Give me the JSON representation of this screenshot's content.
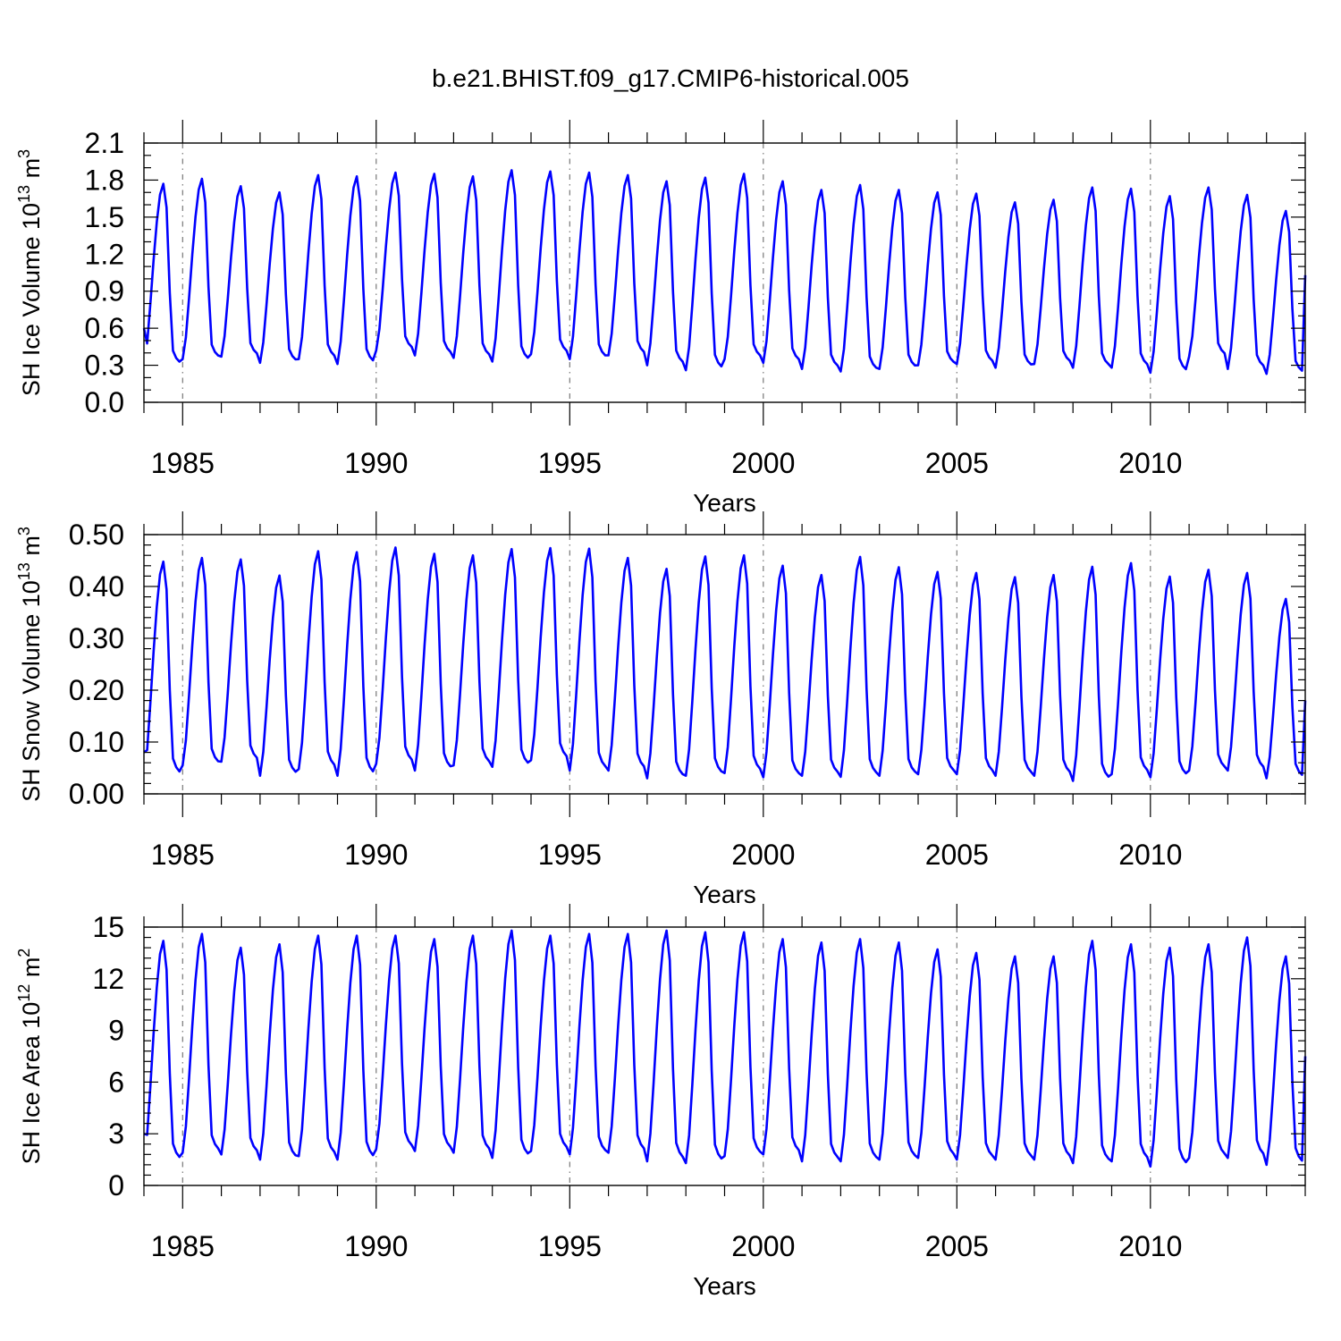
{
  "figure": {
    "title": "b.e21.BHIST.f09_g17.CMIP6-historical.005",
    "colors": {
      "series": "#0000ff",
      "axes": "#000000",
      "reference_lines": "#777777"
    }
  },
  "chart_data": [
    {
      "type": "line",
      "title": "",
      "xlabel": "Years",
      "ylabel": "SH Ice Volume 10^13 m^3",
      "ylabel_parts": {
        "base": "SH Ice Volume 10",
        "exp1": "13",
        "mid": " m",
        "exp2": "3"
      },
      "xlim": [
        1984.0,
        2014.0
      ],
      "ylim": [
        0.0,
        2.1
      ],
      "x_ticks": [
        1985,
        1990,
        1995,
        2000,
        2005,
        2010
      ],
      "x_tick_labels": [
        "1985",
        "1990",
        "1995",
        "2000",
        "2005",
        "2010"
      ],
      "y_ticks": [
        0.0,
        0.3,
        0.6,
        0.9,
        1.2,
        1.5,
        1.8,
        2.1
      ],
      "y_tick_labels": [
        "0.0",
        "0.3",
        "0.6",
        "0.9",
        "1.2",
        "1.5",
        "1.8",
        "2.1"
      ],
      "y_minor_step": 0.1,
      "x_minor_step": 1,
      "reference_lines_x": [
        1985,
        1990,
        1995,
        2000,
        2005,
        2010
      ],
      "series": [
        {
          "x_start": 1984.0,
          "x_step_months": 1,
          "annual_min": [
            0.3,
            0.35,
            0.37,
            0.32,
            0.35,
            0.31,
            0.42,
            0.38,
            0.36,
            0.33,
            0.39,
            0.35,
            0.38,
            0.3,
            0.26,
            0.35,
            0.32,
            0.27,
            0.25,
            0.27,
            0.3,
            0.31,
            0.28,
            0.31,
            0.28,
            0.28,
            0.24,
            0.37,
            0.27,
            0.23
          ],
          "annual_max": [
            1.77,
            1.81,
            1.75,
            1.7,
            1.84,
            1.83,
            1.86,
            1.85,
            1.83,
            1.88,
            1.87,
            1.86,
            1.84,
            1.79,
            1.82,
            1.85,
            1.79,
            1.72,
            1.76,
            1.72,
            1.7,
            1.69,
            1.62,
            1.64,
            1.74,
            1.73,
            1.67,
            1.74,
            1.68,
            1.55
          ],
          "annual_shape": [
            0.0,
            0.12,
            0.34,
            0.58,
            0.79,
            0.94,
            1.0,
            0.87,
            0.4,
            0.08,
            0.04,
            0.02
          ],
          "first_month_value": 0.6,
          "final_value": 1.03
        }
      ]
    },
    {
      "type": "line",
      "title": "",
      "xlabel": "Years",
      "ylabel": "SH Snow Volume 10^13 m^3",
      "ylabel_parts": {
        "base": "SH Snow Volume 10",
        "exp1": "13",
        "mid": " m",
        "exp2": "3"
      },
      "xlim": [
        1984.0,
        2014.0
      ],
      "ylim": [
        0.0,
        0.5
      ],
      "x_ticks": [
        1985,
        1990,
        1995,
        2000,
        2005,
        2010
      ],
      "x_tick_labels": [
        "1985",
        "1990",
        "1995",
        "2000",
        "2005",
        "2010"
      ],
      "y_ticks": [
        0.0,
        0.1,
        0.2,
        0.3,
        0.4,
        0.5
      ],
      "y_tick_labels": [
        "0.00",
        "0.10",
        "0.20",
        "0.30",
        "0.40",
        "0.50"
      ],
      "y_minor_step": 0.02,
      "x_minor_step": 1,
      "reference_lines_x": [
        1985,
        1990,
        1995,
        2000,
        2005,
        2010
      ],
      "series": [
        {
          "x_start": 1984.0,
          "x_step_months": 1,
          "annual_min": [
            0.035,
            0.055,
            0.062,
            0.035,
            0.048,
            0.035,
            0.058,
            0.045,
            0.055,
            0.052,
            0.065,
            0.045,
            0.045,
            0.03,
            0.035,
            0.04,
            0.032,
            0.035,
            0.033,
            0.035,
            0.038,
            0.038,
            0.035,
            0.035,
            0.025,
            0.038,
            0.032,
            0.045,
            0.045,
            0.03
          ],
          "annual_max": [
            0.448,
            0.455,
            0.452,
            0.421,
            0.468,
            0.466,
            0.475,
            0.463,
            0.46,
            0.472,
            0.474,
            0.473,
            0.455,
            0.434,
            0.458,
            0.46,
            0.44,
            0.422,
            0.457,
            0.437,
            0.428,
            0.426,
            0.418,
            0.422,
            0.438,
            0.445,
            0.419,
            0.432,
            0.426,
            0.376
          ],
          "annual_shape": [
            0.0,
            0.12,
            0.34,
            0.58,
            0.79,
            0.94,
            1.0,
            0.87,
            0.4,
            0.08,
            0.04,
            0.02
          ],
          "first_month_value": 0.08,
          "final_value": 0.18
        }
      ]
    },
    {
      "type": "line",
      "title": "",
      "xlabel": "Years",
      "ylabel": "SH Ice Area 10^12 m^2",
      "ylabel_parts": {
        "base": "SH Ice Area 10",
        "exp1": "12",
        "mid": " m",
        "exp2": "2"
      },
      "xlim": [
        1984.0,
        2014.0
      ],
      "ylim": [
        0,
        15
      ],
      "x_ticks": [
        1985,
        1990,
        1995,
        2000,
        2005,
        2010
      ],
      "x_tick_labels": [
        "1985",
        "1990",
        "1995",
        "2000",
        "2005",
        "2010"
      ],
      "y_ticks": [
        0,
        3,
        6,
        9,
        12,
        15
      ],
      "y_tick_labels": [
        "0",
        "3",
        "6",
        "9",
        "12",
        "15"
      ],
      "y_minor_step": 0.6,
      "x_minor_step": 1,
      "reference_lines_x": [
        1985,
        1990,
        1995,
        2000,
        2005,
        2010
      ],
      "series": [
        {
          "x_start": 1984.0,
          "x_step_months": 1,
          "annual_min": [
            1.4,
            1.9,
            1.8,
            1.5,
            1.7,
            1.5,
            2.1,
            2.0,
            1.9,
            1.6,
            2.0,
            1.8,
            1.9,
            1.4,
            1.3,
            1.7,
            1.8,
            1.4,
            1.4,
            1.5,
            1.6,
            1.5,
            1.5,
            1.5,
            1.3,
            1.4,
            1.1,
            1.6,
            1.6,
            1.2
          ],
          "annual_max": [
            14.2,
            14.6,
            13.8,
            14.0,
            14.5,
            14.5,
            14.5,
            14.3,
            14.5,
            14.8,
            14.5,
            14.6,
            14.6,
            14.8,
            14.7,
            14.7,
            14.3,
            14.1,
            14.3,
            14.1,
            13.7,
            13.5,
            13.3,
            13.3,
            14.2,
            14.0,
            13.8,
            14.0,
            14.4,
            13.3
          ],
          "annual_shape": [
            0.0,
            0.12,
            0.34,
            0.58,
            0.79,
            0.94,
            1.0,
            0.87,
            0.4,
            0.08,
            0.04,
            0.02
          ],
          "first_month_value": 3.0,
          "final_value": 7.5
        }
      ]
    }
  ]
}
